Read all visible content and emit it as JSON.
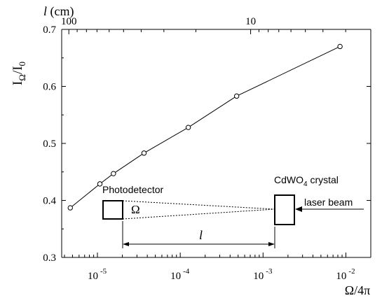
{
  "chart_data": {
    "type": "line",
    "ylabel": "I_Ω/I_0",
    "xlabel": "Ω/4π",
    "top_axis_label": "l (cm)",
    "x_scale": "log",
    "xlim": [
      3.7e-06,
      0.02
    ],
    "ylim": [
      0.3,
      0.7
    ],
    "x_ticks": [
      1e-05,
      0.0001,
      0.001,
      0.01
    ],
    "x_tick_labels": [
      {
        "base": "10",
        "exp": "-5"
      },
      {
        "base": "10",
        "exp": "-4"
      },
      {
        "base": "10",
        "exp": "-3"
      },
      {
        "base": "10",
        "exp": "-2"
      }
    ],
    "y_ticks": [
      0.3,
      0.4,
      0.5,
      0.6,
      0.7
    ],
    "y_tick_labels": [
      "0.3",
      "0.4",
      "0.5",
      "0.6",
      "0.7"
    ],
    "top_ticks": [
      100,
      10
    ],
    "top_tick_labels": [
      "100",
      "10"
    ],
    "grid": false,
    "series": [
      {
        "x": [
          4.7e-06,
          1.07e-05,
          1.56e-05,
          3.65e-05,
          0.000125,
          0.00048,
          0.0085
        ],
        "y": [
          0.387,
          0.429,
          0.447,
          0.483,
          0.528,
          0.583,
          0.67
        ],
        "marker": "open-circle",
        "line": "solid"
      }
    ]
  },
  "inset": {
    "photodetector_label": "Photodetector",
    "omega_label": "Ω",
    "crystal_label_base": "CdWO",
    "crystal_label_sub": "4",
    "crystal_label_rest": " crystal",
    "laser_label": "laser beam",
    "distance_label": "l"
  },
  "colors": {
    "line": "#000000",
    "background": "#ffffff"
  }
}
